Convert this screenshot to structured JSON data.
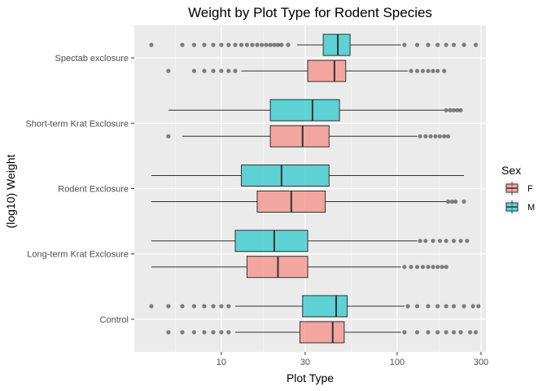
{
  "chart_data": {
    "type": "boxplot",
    "orientation": "horizontal",
    "title": "Weight by Plot Type for Rodent Species",
    "xlabel": "Plot Type",
    "ylabel": "(log10) Weight",
    "x_scale": "log10",
    "xlim": [
      3.2,
      320
    ],
    "x_ticks": [
      10,
      30,
      100,
      300
    ],
    "x_tick_labels": [
      "10",
      "30",
      "100",
      "300"
    ],
    "categories": [
      "Spectab exclosure",
      "Short-term Krat Exclosure",
      "Rodent Exclosure",
      "Long-term Krat Exclosure",
      "Control"
    ],
    "legend": {
      "title": "Sex",
      "position": "right",
      "entries": [
        {
          "label": "F",
          "color": "#F8766D"
        },
        {
          "label": "M",
          "color": "#00BFC4"
        }
      ]
    },
    "series": [
      {
        "name": "F",
        "color": "#F8766D",
        "boxes": [
          {
            "category": "Spectab exclosure",
            "whisker_low": 13,
            "q1": 31,
            "median": 44,
            "q3": 51,
            "whisker_high": 115,
            "outliers": [
              5,
              7,
              8,
              9,
              10,
              11,
              12,
              120,
              130,
              140,
              150,
              160,
              170,
              185
            ]
          },
          {
            "category": "Short-term Krat Exclosure",
            "whisker_low": 6,
            "q1": 19,
            "median": 29,
            "q3": 41,
            "whisker_high": 130,
            "outliers": [
              5,
              135,
              145,
              155,
              165,
              175,
              185,
              195
            ]
          },
          {
            "category": "Rodent Exclosure",
            "whisker_low": 4,
            "q1": 16,
            "median": 25,
            "q3": 39,
            "whisker_high": 190,
            "outliers": [
              195,
              205,
              215,
              240
            ]
          },
          {
            "category": "Long-term Krat Exclosure",
            "whisker_low": 4,
            "q1": 14,
            "median": 21,
            "q3": 31,
            "whisker_high": 105,
            "outliers": [
              110,
              120,
              130,
              140,
              150,
              160,
              170,
              180,
              190
            ]
          },
          {
            "category": "Control",
            "whisker_low": 12,
            "q1": 28,
            "median": 43,
            "q3": 50,
            "whisker_high": 105,
            "outliers": [
              5,
              6,
              7,
              8,
              9,
              10,
              11,
              110,
              130,
              150,
              170,
              190,
              210,
              230,
              260,
              280
            ]
          }
        ]
      },
      {
        "name": "M",
        "color": "#00BFC4",
        "boxes": [
          {
            "category": "Spectab exclosure",
            "whisker_low": 27,
            "q1": 38,
            "median": 46,
            "q3": 54,
            "whisker_high": 105,
            "outliers": [
              4,
              6,
              7,
              8,
              9,
              10,
              11,
              12,
              13,
              14,
              15,
              16,
              17,
              18,
              19,
              20,
              21,
              22,
              24,
              110,
              130,
              150,
              170,
              190,
              210,
              240,
              280
            ]
          },
          {
            "category": "Short-term Krat Exclosure",
            "whisker_low": 5,
            "q1": 19,
            "median": 33,
            "q3": 47,
            "whisker_high": 185,
            "outliers": [
              190,
              200,
              210,
              220,
              230
            ]
          },
          {
            "category": "Rodent Exclosure",
            "whisker_low": 4,
            "q1": 13,
            "median": 22,
            "q3": 41,
            "whisker_high": 240,
            "outliers": []
          },
          {
            "category": "Long-term Krat Exclosure",
            "whisker_low": 4,
            "q1": 12,
            "median": 20,
            "q3": 31,
            "whisker_high": 130,
            "outliers": [
              135,
              145,
              160,
              175,
              190,
              210,
              230,
              250
            ]
          },
          {
            "category": "Control",
            "whisker_low": 12,
            "q1": 29,
            "median": 45,
            "q3": 52,
            "whisker_high": 110,
            "outliers": [
              4,
              5,
              6,
              7,
              8,
              9,
              10,
              11,
              115,
              130,
              150,
              170,
              190,
              210,
              240,
              270,
              290
            ]
          }
        ]
      }
    ]
  }
}
